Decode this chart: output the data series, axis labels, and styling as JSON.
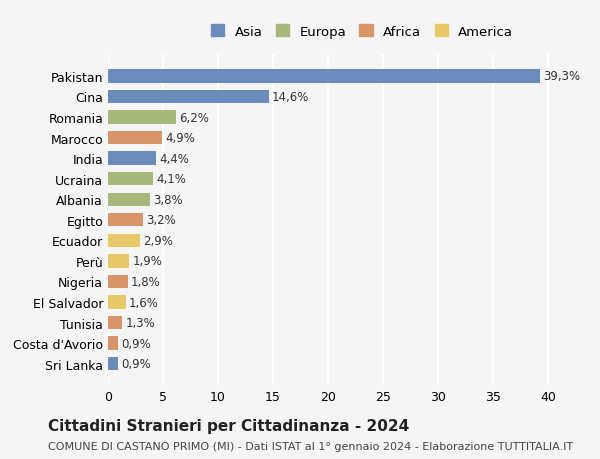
{
  "countries": [
    "Pakistan",
    "Cina",
    "Romania",
    "Marocco",
    "India",
    "Ucraina",
    "Albania",
    "Egitto",
    "Ecuador",
    "Perù",
    "Nigeria",
    "El Salvador",
    "Tunisia",
    "Costa d'Avorio",
    "Sri Lanka"
  ],
  "values": [
    39.3,
    14.6,
    6.2,
    4.9,
    4.4,
    4.1,
    3.8,
    3.2,
    2.9,
    1.9,
    1.8,
    1.6,
    1.3,
    0.9,
    0.9
  ],
  "labels": [
    "39,3%",
    "14,6%",
    "6,2%",
    "4,9%",
    "4,4%",
    "4,1%",
    "3,8%",
    "3,2%",
    "2,9%",
    "1,9%",
    "1,8%",
    "1,6%",
    "1,3%",
    "0,9%",
    "0,9%"
  ],
  "continents": [
    "Asia",
    "Asia",
    "Europa",
    "Africa",
    "Asia",
    "Europa",
    "Europa",
    "Africa",
    "America",
    "America",
    "Africa",
    "America",
    "Africa",
    "Africa",
    "Asia"
  ],
  "colors": {
    "Asia": "#6b8cba",
    "Europa": "#a8b87a",
    "Africa": "#d9956a",
    "America": "#e8c96a"
  },
  "legend_order": [
    "Asia",
    "Europa",
    "Africa",
    "America"
  ],
  "xlim": [
    0,
    42
  ],
  "xticks": [
    0,
    5,
    10,
    15,
    20,
    25,
    30,
    35,
    40
  ],
  "title": "Cittadini Stranieri per Cittadinanza - 2024",
  "subtitle": "COMUNE DI CASTANO PRIMO (MI) - Dati ISTAT al 1° gennaio 2024 - Elaborazione TUTTITALIA.IT",
  "background_color": "#f5f5f5",
  "grid_color": "#ffffff",
  "bar_height": 0.65,
  "label_fontsize": 8.5,
  "title_fontsize": 11,
  "subtitle_fontsize": 8
}
